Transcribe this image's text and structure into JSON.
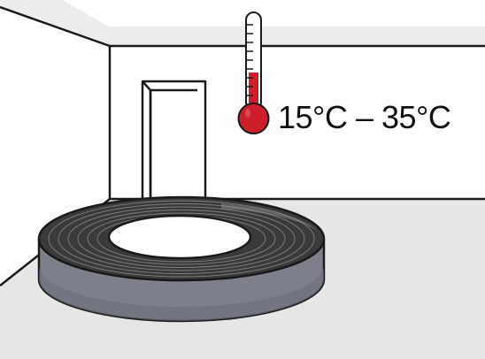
{
  "temperature": {
    "range_label": "15°C – 35°C",
    "min_c": 15,
    "max_c": 35
  },
  "colors": {
    "wall_shade": "#e9e9e9",
    "floor": "#e6e6e6",
    "line": "#1a1a1a",
    "thermometer_red": "#cc1f2a",
    "roll_side": "#7d808a",
    "roll_top": "#3a3a3a"
  },
  "icons": {
    "thermometer": "thermometer-icon",
    "tape_roll": "tape-roll-icon"
  }
}
